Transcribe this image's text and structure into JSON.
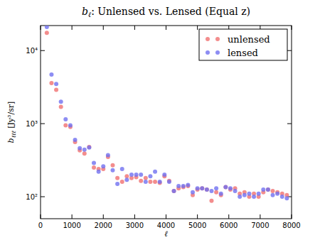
{
  "chart_data": {
    "type": "scatter",
    "title": "bℓ: Unlensed vs. Lensed (Equal z)",
    "x_label": "ℓ",
    "y_label": "bℓℓℓ [Jy³/sr]",
    "log": "y",
    "legend": "upper right",
    "marker": "circle",
    "xlim": [
      0,
      8000
    ],
    "xticks": [
      0,
      1000,
      2000,
      3000,
      4000,
      5000,
      6000,
      7000,
      8000
    ],
    "ylim": [
      50,
      22000
    ],
    "yticks": [
      {
        "value": 100,
        "label": "10²"
      },
      {
        "value": 1000,
        "label": "10³"
      },
      {
        "value": 10000,
        "label": "10⁴"
      }
    ],
    "x": [
      200,
      350,
      500,
      650,
      800,
      950,
      1100,
      1250,
      1400,
      1550,
      1700,
      1850,
      2000,
      2150,
      2300,
      2450,
      2600,
      2750,
      2900,
      3050,
      3200,
      3350,
      3500,
      3650,
      3800,
      3950,
      4100,
      4250,
      4400,
      4550,
      4700,
      4850,
      5000,
      5150,
      5300,
      5450,
      5600,
      5750,
      5900,
      6050,
      6200,
      6350,
      6500,
      6650,
      6800,
      6950,
      7100,
      7250,
      7400,
      7550,
      7700,
      7850
    ],
    "series": [
      {
        "name": "unlensed",
        "color": "#f07070",
        "values": [
          17500,
          3600,
          2900,
          1700,
          950,
          900,
          560,
          430,
          390,
          480,
          250,
          240,
          240,
          350,
          270,
          180,
          160,
          190,
          180,
          185,
          165,
          180,
          160,
          160,
          155,
          190,
          165,
          120,
          130,
          135,
          140,
          105,
          125,
          130,
          125,
          88,
          115,
          105,
          135,
          125,
          130,
          110,
          115,
          100,
          110,
          100,
          115,
          125,
          120,
          115,
          110,
          105
        ]
      },
      {
        "name": "lensed",
        "color": "#7070f0",
        "values": [
          21000,
          4700,
          3500,
          2000,
          1150,
          950,
          600,
          460,
          440,
          470,
          290,
          220,
          260,
          370,
          230,
          150,
          240,
          170,
          200,
          200,
          200,
          160,
          190,
          220,
          160,
          200,
          160,
          120,
          140,
          140,
          145,
          115,
          130,
          130,
          125,
          120,
          130,
          110,
          135,
          130,
          120,
          100,
          105,
          110,
          100,
          110,
          125,
          125,
          105,
          110,
          100,
          95
        ]
      }
    ]
  }
}
